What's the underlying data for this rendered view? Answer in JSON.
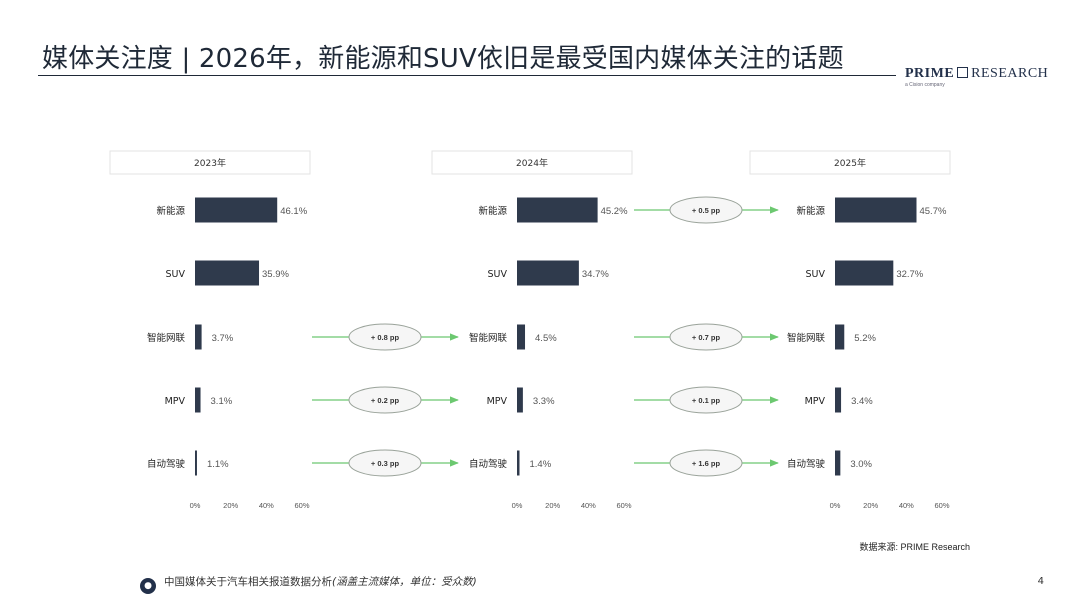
{
  "header": {
    "title": "媒体关注度 | 2026年，新能源和SUV依旧是最受国内媒体关注的话题",
    "logo_bold": "PRIME",
    "logo_rest": "RESEARCH",
    "logo_sub": "a Cision company"
  },
  "colors": {
    "bar": "#2f3a4c",
    "arrow": "#6cc870",
    "pill_fill": "#f6f6f6",
    "pill_stroke": "#9aa39a",
    "rule": "#1f2937"
  },
  "chart_data": {
    "type": "bar",
    "orientation": "horizontal",
    "xlim": [
      0,
      60
    ],
    "x_ticks": [
      "0%",
      "20%",
      "40%",
      "60%"
    ],
    "categories": [
      "新能源",
      "SUV",
      "智能网联",
      "MPV",
      "自动驾驶"
    ],
    "panels": [
      {
        "year": "2023年",
        "values": [
          46.1,
          35.9,
          3.7,
          3.1,
          1.1
        ],
        "labels": [
          "46.1%",
          "35.9%",
          "3.7%",
          "3.1%",
          "1.1%"
        ]
      },
      {
        "year": "2024年",
        "values": [
          45.2,
          34.7,
          4.5,
          3.3,
          1.4
        ],
        "labels": [
          "45.2%",
          "34.7%",
          "4.5%",
          "3.3%",
          "1.4%"
        ]
      },
      {
        "year": "2025年",
        "values": [
          45.7,
          32.7,
          5.2,
          3.4,
          3.0
        ],
        "labels": [
          "45.7%",
          "32.7%",
          "5.2%",
          "3.4%",
          "3.0%"
        ]
      }
    ],
    "annotations": [
      {
        "from": "2023年",
        "to": "2024年",
        "category": "智能网联",
        "text": "+ 0.8 pp"
      },
      {
        "from": "2023年",
        "to": "2024年",
        "category": "MPV",
        "text": "+ 0.2 pp"
      },
      {
        "from": "2023年",
        "to": "2024年",
        "category": "自动驾驶",
        "text": "+ 0.3 pp"
      },
      {
        "from": "2024年",
        "to": "2025年",
        "category": "新能源",
        "text": "+ 0.5 pp"
      },
      {
        "from": "2024年",
        "to": "2025年",
        "category": "智能网联",
        "text": "+ 0.7 pp"
      },
      {
        "from": "2024年",
        "to": "2025年",
        "category": "MPV",
        "text": "+ 0.1 pp"
      },
      {
        "from": "2024年",
        "to": "2025年",
        "category": "自动驾驶",
        "text": "+ 1.6 pp"
      }
    ]
  },
  "source": "数据来源: PRIME Research",
  "footer": {
    "text": "中国媒体关于汽车相关报道数据分析",
    "note": "(涵盖主流媒体，单位：受众数)",
    "page": "4"
  }
}
